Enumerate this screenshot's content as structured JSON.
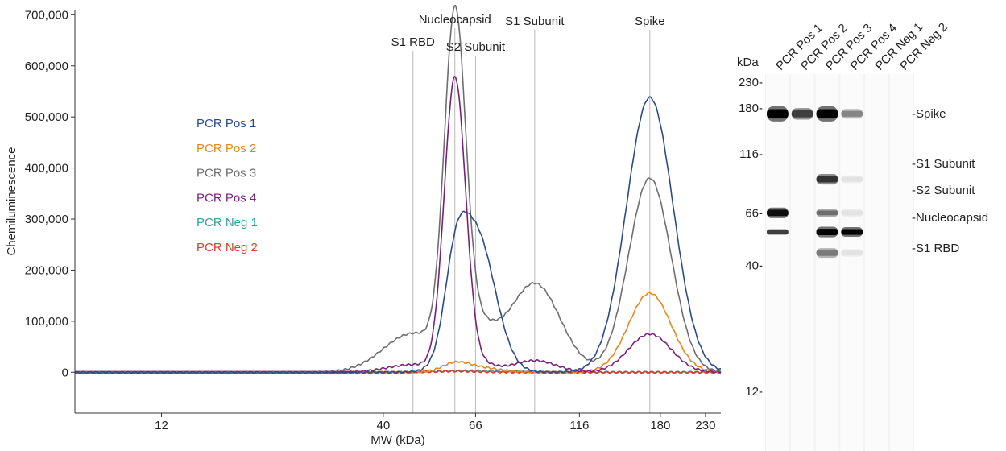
{
  "chart_data": [
    {
      "type": "line",
      "xlabel": "MW (kDa)",
      "ylabel": "Chemiluminescence",
      "x_scale": "log",
      "xlim": [
        7.5,
        250
      ],
      "ylim": [
        -80000,
        710000
      ],
      "x_ticks": [
        {
          "value": 12,
          "label": "12"
        },
        {
          "value": 40,
          "label": "40"
        },
        {
          "value": 66,
          "label": "66"
        },
        {
          "value": 116,
          "label": "116"
        },
        {
          "value": 180,
          "label": "180"
        },
        {
          "value": 230,
          "label": "230"
        }
      ],
      "y_ticks": [
        {
          "value": 0,
          "label": "0"
        },
        {
          "value": 100000,
          "label": "100,000"
        },
        {
          "value": 200000,
          "label": "200,000"
        },
        {
          "value": 300000,
          "label": "300,000"
        },
        {
          "value": 400000,
          "label": "400,000"
        },
        {
          "value": 500000,
          "label": "500,000"
        },
        {
          "value": 600000,
          "label": "600,000"
        },
        {
          "value": 700000,
          "label": "700,000"
        }
      ],
      "grid": false,
      "legend_position": "left, inside plot",
      "peak_markers": [
        {
          "label": "S1 RBD",
          "x": 47
        },
        {
          "label": "Nucleocapsid",
          "x": 59
        },
        {
          "label": "S2 Subunit",
          "x": 66
        },
        {
          "label": "S1 Subunit",
          "x": 91
        },
        {
          "label": "Spike",
          "x": 170
        }
      ],
      "series": [
        {
          "name": "PCR Pos 1",
          "color": "#2b4a8c",
          "peaks": [
            {
              "x": 59,
              "y": 123000,
              "w": 0.025
            },
            {
              "x": 66,
              "y": 275000,
              "w": 0.045
            },
            {
              "x": 170,
              "y": 538000,
              "w": 0.055
            }
          ]
        },
        {
          "name": "PCR Pos 2",
          "color": "#e8861f",
          "peaks": [
            {
              "x": 59,
              "y": 14000,
              "w": 0.03
            },
            {
              "x": 66,
              "y": 10000,
              "w": 0.05
            },
            {
              "x": 170,
              "y": 155000,
              "w": 0.05
            }
          ]
        },
        {
          "name": "PCR Pos 3",
          "color": "#6e6e6e",
          "peaks": [
            {
              "x": 47,
              "y": 76000,
              "w": 0.07
            },
            {
              "x": 59,
              "y": 642000,
              "w": 0.025
            },
            {
              "x": 66,
              "y": 82000,
              "w": 0.045
            },
            {
              "x": 91,
              "y": 174000,
              "w": 0.06
            },
            {
              "x": 170,
              "y": 380000,
              "w": 0.05
            }
          ]
        },
        {
          "name": "PCR Pos 4",
          "color": "#7a1f7a",
          "peaks": [
            {
              "x": 47,
              "y": 15000,
              "w": 0.06
            },
            {
              "x": 59,
              "y": 566000,
              "w": 0.025
            },
            {
              "x": 66,
              "y": 19000,
              "w": 0.04
            },
            {
              "x": 91,
              "y": 23000,
              "w": 0.05
            },
            {
              "x": 170,
              "y": 75000,
              "w": 0.05
            }
          ]
        },
        {
          "name": "PCR Neg 1",
          "color": "#2fa39a",
          "peaks": [
            {
              "x": 66,
              "y": 3000,
              "w": 0.08
            }
          ]
        },
        {
          "name": "PCR Neg 2",
          "color": "#e0392f",
          "peaks": [
            {
              "x": 59,
              "y": 2000,
              "w": 0.05
            }
          ]
        }
      ]
    },
    {
      "type": "gel",
      "ylabel": "kDa",
      "mw_scale": "log",
      "mw_ticks": [
        {
          "value": 230,
          "label": "230-"
        },
        {
          "value": 180,
          "label": "180-"
        },
        {
          "value": 116,
          "label": "116-"
        },
        {
          "value": 66,
          "label": "66-"
        },
        {
          "value": 40,
          "label": "40-"
        },
        {
          "value": 12,
          "label": "12-"
        }
      ],
      "lanes": [
        "PCR Pos 1",
        "PCR Pos 2",
        "PCR Pos 3",
        "PCR Pos 4",
        "PCR Neg 1",
        "PCR Neg 2"
      ],
      "band_labels": [
        {
          "label": "-Spike",
          "mw": 170
        },
        {
          "label": "-S1 Subunit",
          "mw": 91
        },
        {
          "label": "-S2 Subunit",
          "mw": 66
        },
        {
          "label": "-Nucleocapsid",
          "mw": 55
        },
        {
          "label": "-S1 RBD",
          "mw": 45
        }
      ],
      "bands": [
        {
          "lane": 0,
          "mw": 170,
          "intensity": 1.0,
          "thick": 1.6
        },
        {
          "lane": 0,
          "mw": 66,
          "intensity": 0.95,
          "thick": 1.1
        },
        {
          "lane": 0,
          "mw": 55,
          "intensity": 0.75,
          "thick": 0.6
        },
        {
          "lane": 1,
          "mw": 170,
          "intensity": 0.75,
          "thick": 1.2
        },
        {
          "lane": 2,
          "mw": 170,
          "intensity": 1.0,
          "thick": 1.6
        },
        {
          "lane": 2,
          "mw": 91,
          "intensity": 0.8,
          "thick": 1.1
        },
        {
          "lane": 2,
          "mw": 66,
          "intensity": 0.55,
          "thick": 0.8
        },
        {
          "lane": 2,
          "mw": 55,
          "intensity": 1.0,
          "thick": 1.1
        },
        {
          "lane": 2,
          "mw": 45,
          "intensity": 0.5,
          "thick": 1.0
        },
        {
          "lane": 3,
          "mw": 170,
          "intensity": 0.45,
          "thick": 1.0
        },
        {
          "lane": 3,
          "mw": 91,
          "intensity": 0.06,
          "thick": 0.8
        },
        {
          "lane": 3,
          "mw": 66,
          "intensity": 0.06,
          "thick": 0.8
        },
        {
          "lane": 3,
          "mw": 55,
          "intensity": 1.0,
          "thick": 1.0
        },
        {
          "lane": 3,
          "mw": 45,
          "intensity": 0.06,
          "thick": 0.8
        }
      ]
    }
  ]
}
